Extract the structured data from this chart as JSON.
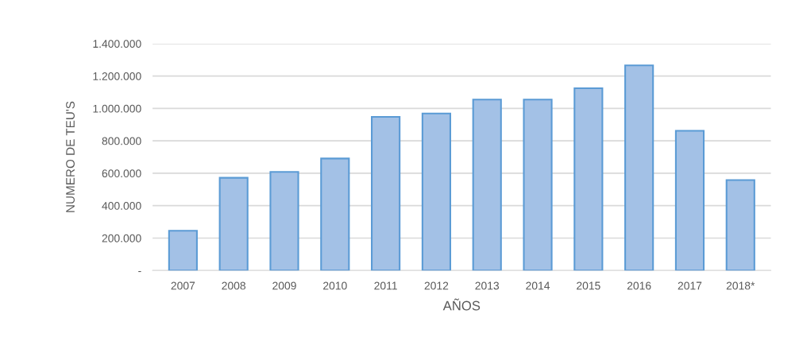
{
  "chart_data": {
    "type": "bar",
    "xlabel": "AÑOS",
    "ylabel": "NUMERO DE TEU'S",
    "categories": [
      "2007",
      "2008",
      "2009",
      "2010",
      "2011",
      "2012",
      "2013",
      "2014",
      "2015",
      "2016",
      "2017",
      "2018*"
    ],
    "values": [
      245000,
      572000,
      608000,
      691000,
      948000,
      969000,
      1055000,
      1055000,
      1125000,
      1266000,
      862000,
      558000
    ],
    "color": "#a3c1e6",
    "ylim": [
      0,
      1400000
    ],
    "yticks": [
      {
        "value": 0,
        "label": "-"
      },
      {
        "value": 200000,
        "label": "200.000"
      },
      {
        "value": 400000,
        "label": "400.000"
      },
      {
        "value": 600000,
        "label": "600.000"
      },
      {
        "value": 800000,
        "label": "800.000"
      },
      {
        "value": 1000000,
        "label": "1.000.000"
      },
      {
        "value": 1200000,
        "label": "1.200.000"
      },
      {
        "value": 1400000,
        "label": "1.400.000"
      }
    ],
    "grid": "y"
  }
}
